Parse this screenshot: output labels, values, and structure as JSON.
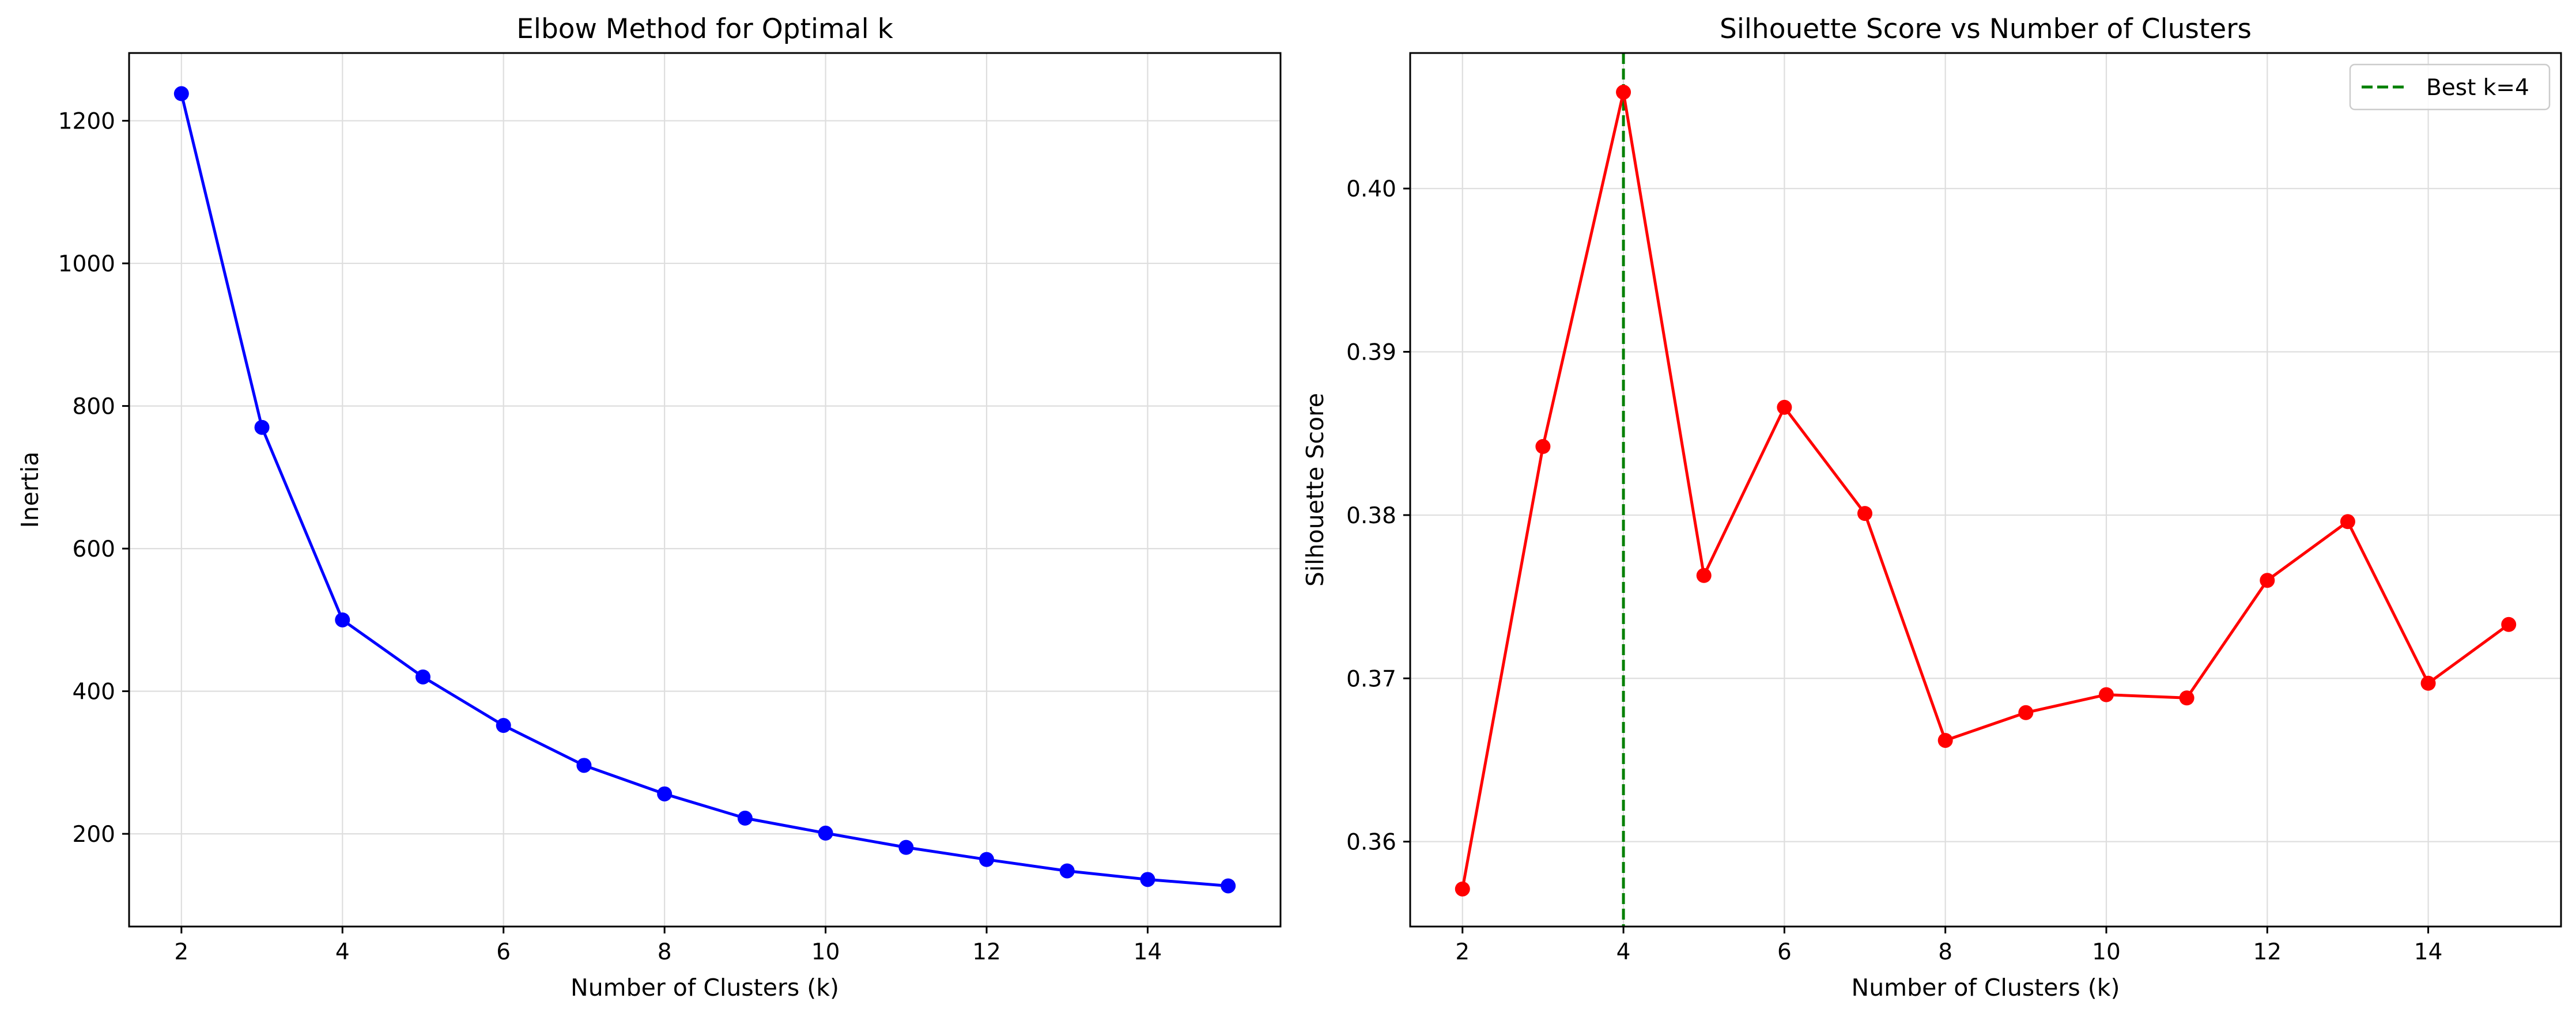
{
  "chart_data": [
    {
      "type": "line",
      "title": "Elbow Method for Optimal k",
      "xlabel": "Number of Clusters (k)",
      "ylabel": "Inertia",
      "xlim": [
        1.35,
        15.65
      ],
      "ylim": [
        70,
        1295
      ],
      "xticks": [
        2,
        4,
        6,
        8,
        10,
        12,
        14
      ],
      "yticks": [
        200,
        400,
        600,
        800,
        1000,
        1200
      ],
      "grid": true,
      "series": [
        {
          "color": "#0000ff",
          "marker": "circle",
          "x": [
            2,
            3,
            4,
            5,
            6,
            7,
            8,
            9,
            10,
            11,
            12,
            13,
            14,
            15
          ],
          "y": [
            1238,
            770,
            500,
            420,
            352,
            296,
            256,
            222,
            201,
            181,
            164,
            148,
            136,
            127
          ]
        }
      ]
    },
    {
      "type": "line",
      "title": "Silhouette Score vs Number of Clusters",
      "xlabel": "Number of Clusters (k)",
      "ylabel": "Silhouette Score",
      "xlim": [
        1.35,
        15.65
      ],
      "ylim": [
        0.3548,
        0.4083
      ],
      "xticks": [
        2,
        4,
        6,
        8,
        10,
        12,
        14
      ],
      "yticks": [
        0.36,
        0.37,
        0.38,
        0.39,
        0.4
      ],
      "ytick_labels": [
        "0.36",
        "0.37",
        "0.38",
        "0.39",
        "0.40"
      ],
      "grid": true,
      "legend": {
        "placement": "top-right",
        "entries": [
          "Best k=4"
        ]
      },
      "series": [
        {
          "color": "#ff0000",
          "marker": "circle",
          "x": [
            2,
            3,
            4,
            5,
            6,
            7,
            8,
            9,
            10,
            11,
            12,
            13,
            14,
            15
          ],
          "y": [
            0.3571,
            0.3842,
            0.4059,
            0.3763,
            0.3866,
            0.3801,
            0.3662,
            0.3679,
            0.369,
            0.3688,
            0.376,
            0.3796,
            0.3697,
            0.3733
          ]
        }
      ],
      "reference_lines": [
        {
          "orientation": "vertical",
          "x": 4,
          "color": "#008000",
          "style": "dashed",
          "label": "Best k=4"
        }
      ]
    }
  ]
}
